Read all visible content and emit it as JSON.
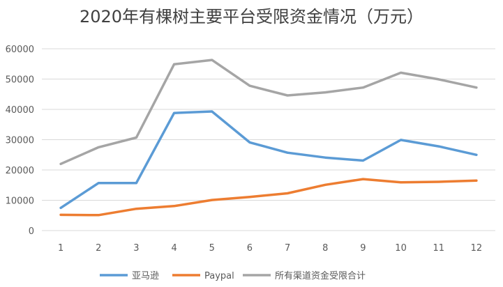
{
  "chart_data": {
    "type": "line",
    "title": "2020年有棵树主要平台受限资金情况（万元）",
    "x": [
      "1",
      "2",
      "3",
      "4",
      "5",
      "6",
      "7",
      "8",
      "9",
      "10",
      "11",
      "12"
    ],
    "ylim": [
      0,
      60000
    ],
    "yticks": [
      "0",
      "10000",
      "20000",
      "30000",
      "40000",
      "50000",
      "60000"
    ],
    "grid": true,
    "legend_position": "bottom",
    "series": [
      {
        "name": "亚马逊",
        "color": "#5B9BD5",
        "values": [
          7500,
          15700,
          15700,
          38800,
          39300,
          29100,
          25700,
          24100,
          23100,
          29900,
          27800,
          25000
        ]
      },
      {
        "name": "Paypal",
        "color": "#ED7D31",
        "values": [
          5200,
          5100,
          7200,
          8100,
          10100,
          11100,
          12300,
          15100,
          17000,
          15900,
          16100,
          16500
        ]
      },
      {
        "name": "所有渠道资金受限合计",
        "color": "#A5A5A5",
        "values": [
          22000,
          27500,
          30700,
          54900,
          56300,
          47800,
          44600,
          45600,
          47200,
          52100,
          49900,
          47200
        ]
      }
    ]
  }
}
